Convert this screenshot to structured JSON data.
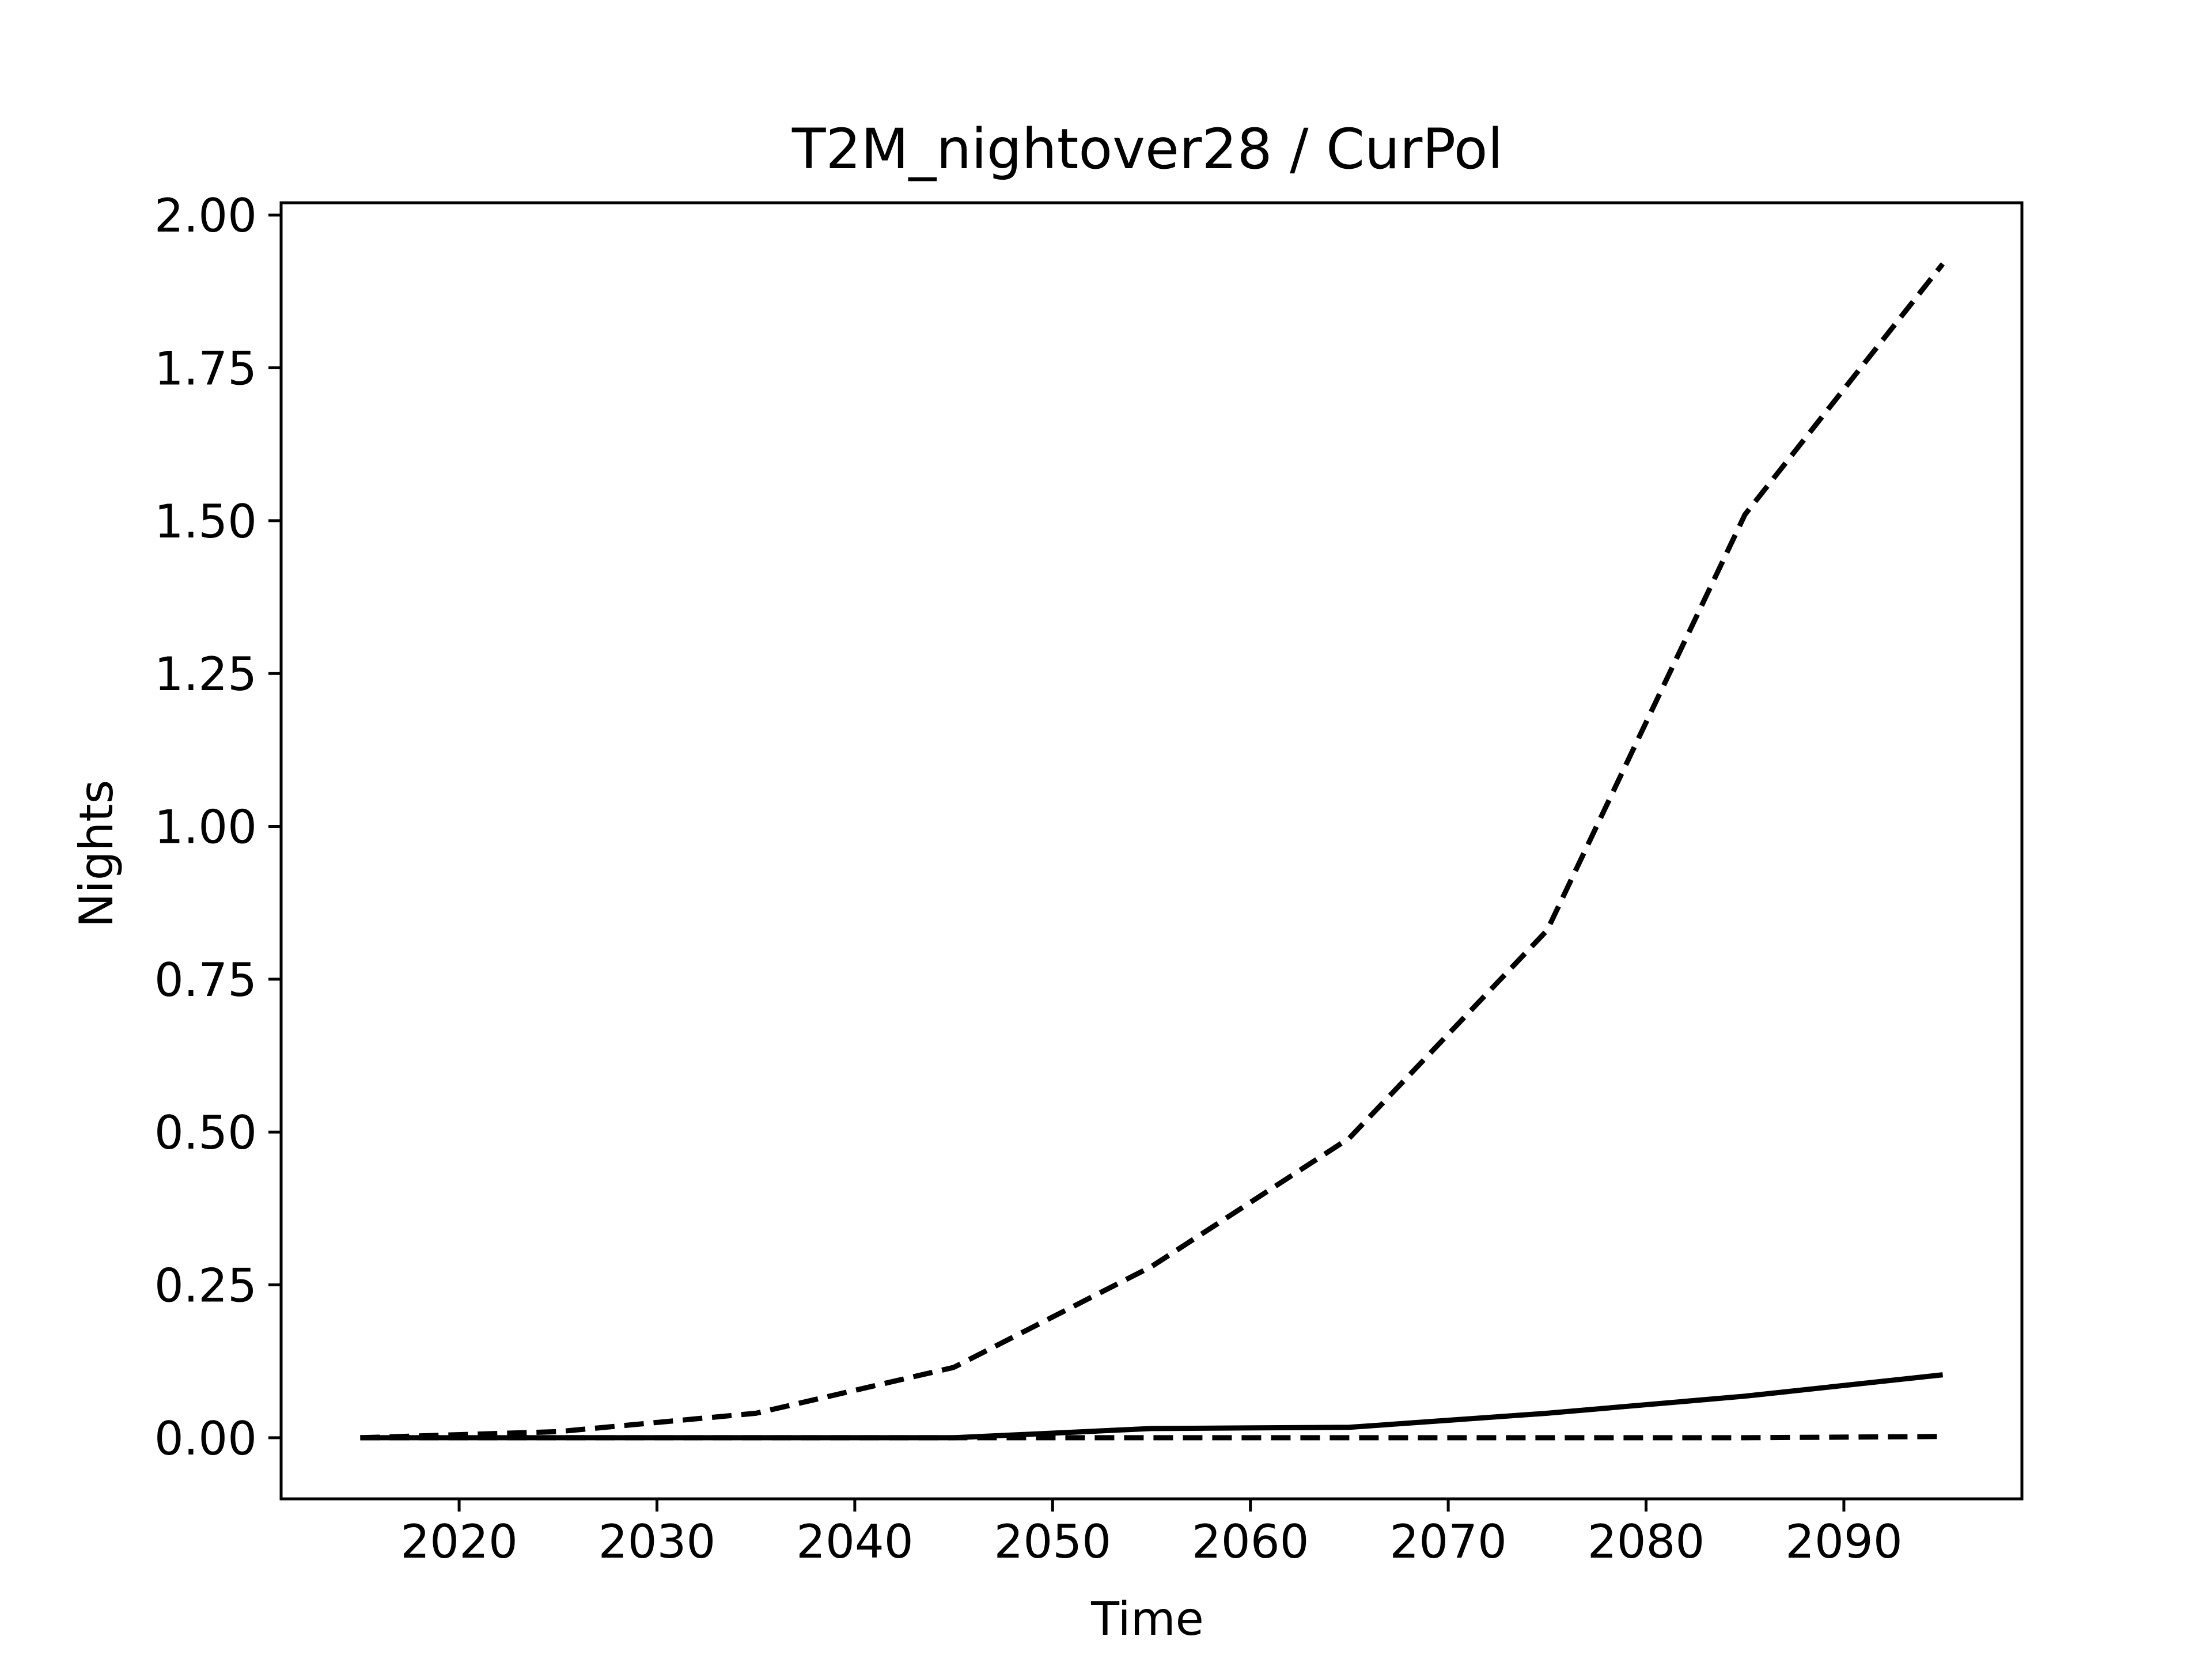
{
  "chart_data": {
    "type": "line",
    "title": "T2M_nightover28 / CurPol",
    "xlabel": "Time",
    "ylabel": "Nights",
    "xlim": [
      2011,
      2099
    ],
    "ylim": [
      -0.1,
      2.02
    ],
    "xticks": [
      2020,
      2030,
      2040,
      2050,
      2060,
      2070,
      2080,
      2090
    ],
    "yticks": [
      0.0,
      0.25,
      0.5,
      0.75,
      1.0,
      1.25,
      1.5,
      1.75,
      2.0
    ],
    "xtick_labels": [
      "2020",
      "2030",
      "2040",
      "2050",
      "2060",
      "2070",
      "2080",
      "2090"
    ],
    "ytick_labels": [
      "0.00",
      "0.25",
      "0.50",
      "0.75",
      "1.00",
      "1.25",
      "1.50",
      "1.75",
      "2.00"
    ],
    "grid": false,
    "x": [
      2015,
      2025,
      2035,
      2045,
      2055,
      2065,
      2075,
      2085,
      2095
    ],
    "series": [
      {
        "style": "solid",
        "color": "#000000",
        "values": [
          0.0,
          0.0,
          0.0,
          0.0,
          0.015,
          0.017,
          0.04,
          0.068,
          0.103
        ]
      },
      {
        "style": "dashed",
        "color": "#000000",
        "values": [
          0.0,
          0.01,
          0.04,
          0.115,
          0.28,
          0.49,
          0.83,
          1.51,
          1.92
        ]
      },
      {
        "style": "dashed",
        "color": "#000000",
        "values": [
          0.0,
          0.0,
          0.0,
          0.0,
          0.0,
          0.0,
          0.0,
          0.0,
          0.002
        ]
      }
    ]
  }
}
